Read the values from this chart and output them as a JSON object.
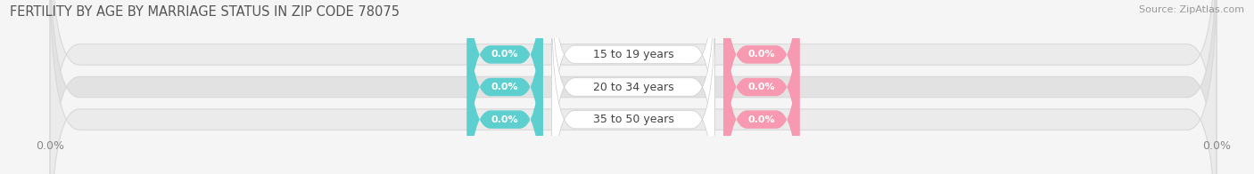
{
  "title": "FERTILITY BY AGE BY MARRIAGE STATUS IN ZIP CODE 78075",
  "source": "Source: ZipAtlas.com",
  "categories": [
    "15 to 19 years",
    "20 to 34 years",
    "35 to 50 years"
  ],
  "married_values": [
    0.0,
    0.0,
    0.0
  ],
  "unmarried_values": [
    0.0,
    0.0,
    0.0
  ],
  "married_color": "#5ecfcf",
  "unmarried_color": "#f799b0",
  "bar_bg_color": "#ebebeb",
  "bar_border_color": "#d8d8d8",
  "center_bg_color": "#ffffff",
  "title_fontsize": 10.5,
  "source_fontsize": 8,
  "label_fontsize": 9,
  "badge_fontsize": 8,
  "tick_fontsize": 9,
  "background_color": "#f5f5f5",
  "bar_height": 0.62,
  "row_bg_colors": [
    "#ebebeb",
    "#e2e2e2",
    "#ebebeb"
  ]
}
